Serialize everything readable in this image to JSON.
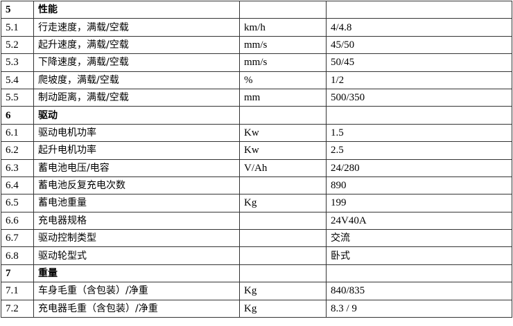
{
  "rows": [
    {
      "no": "5",
      "item": "性能",
      "unit": "",
      "value": "",
      "section": true
    },
    {
      "no": "5.1",
      "item": "行走速度，满载/空载",
      "unit": "km/h",
      "value": "4/4.8"
    },
    {
      "no": "5.2",
      "item": "起升速度，满载/空载",
      "unit": "mm/s",
      "value": "45/50"
    },
    {
      "no": "5.3",
      "item": "下降速度，满载/空载",
      "unit": "mm/s",
      "value": "50/45"
    },
    {
      "no": "5.4",
      "item": "爬坡度，满载/空载",
      "unit": "%",
      "value": "1/2"
    },
    {
      "no": "5.5",
      "item": "制动距离，满载/空载",
      "unit": "mm",
      "value": "500/350"
    },
    {
      "no": "6",
      "item": "驱动",
      "unit": "",
      "value": "",
      "section": true
    },
    {
      "no": "6.1",
      "item": "驱动电机功率",
      "unit": "Kw",
      "value": "1.5"
    },
    {
      "no": "6.2",
      "item": "起升电机功率",
      "unit": "Kw",
      "value": "2.5"
    },
    {
      "no": "6.3",
      "item": "蓄电池电压/电容",
      "unit": "V/Ah",
      "value": "24/280"
    },
    {
      "no": "6.4",
      "item": "蓄电池反复充电次数",
      "unit": "",
      "value": "890"
    },
    {
      "no": "6.5",
      "item": "蓄电池重量",
      "unit": "Kg",
      "value": "199"
    },
    {
      "no": "6.6",
      "item": "充电器规格",
      "unit": "",
      "value": "24V40A"
    },
    {
      "no": "6.7",
      "item": "驱动控制类型",
      "unit": "",
      "value": "交流"
    },
    {
      "no": "6.8",
      "item": "驱动轮型式",
      "unit": "",
      "value": "卧式"
    },
    {
      "no": "7",
      "item": "重量",
      "unit": "",
      "value": "",
      "section": true
    },
    {
      "no": "7.1",
      "item": "车身毛重（含包装）/净重",
      "unit": "Kg",
      "value": "840/835"
    },
    {
      "no": "7.2",
      "item": "充电器毛重（含包装）/净重",
      "unit": "Kg",
      "value": "8.3 / 9"
    }
  ]
}
